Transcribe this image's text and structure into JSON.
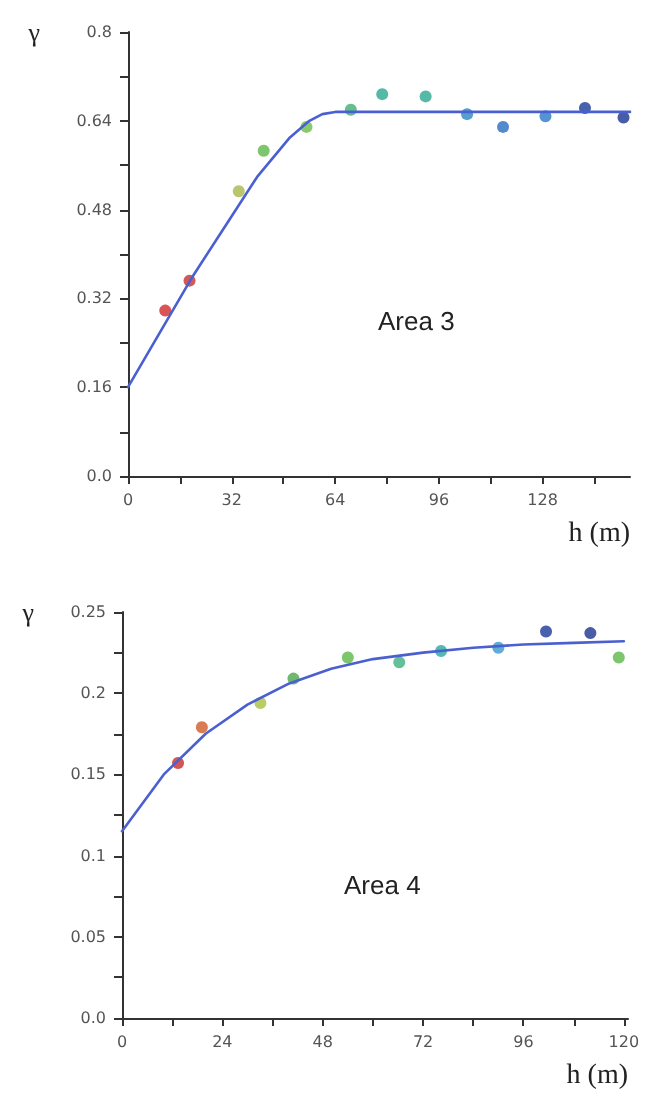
{
  "chart_data": [
    {
      "type": "scatter",
      "ylabel": "γ",
      "xlabel": "h (m)",
      "annotations": [
        "Area 3"
      ],
      "xlim": [
        0,
        155
      ],
      "ylim": [
        0,
        0.8
      ],
      "xticks": [
        0,
        {
          "value": 16,
          "label": null
        },
        32,
        {
          "value": 48,
          "label": null
        },
        64,
        {
          "value": 80,
          "label": null
        },
        96,
        {
          "value": 112,
          "label": null
        },
        128,
        {
          "value": 144,
          "label": null
        }
      ],
      "yticks": [
        {
          "value": 0,
          "label": "0.0"
        },
        {
          "value": 0.08,
          "label": null
        },
        0.16,
        {
          "value": 0.24,
          "label": null
        },
        0.32,
        {
          "value": 0.4,
          "label": null
        },
        0.48,
        {
          "value": 0.56,
          "label": null
        },
        0.64,
        {
          "value": 0.72,
          "label": null
        },
        0.8
      ],
      "grid": false,
      "marker": "circle",
      "series": [
        {
          "x": [
            11.5,
            19,
            34.2,
            41.9,
            55.1,
            68.8,
            78.5,
            91.9,
            104.7,
            115.8,
            128.9,
            141.1,
            153
          ],
          "values": [
            0.298,
            0.352,
            0.513,
            0.586,
            0.629,
            0.66,
            0.688,
            0.684,
            0.652,
            0.629,
            0.648,
            0.663,
            0.646
          ],
          "colors": [
            "#d02a2a",
            "#c83030",
            "#a8b848",
            "#5cb84a",
            "#6cbc4a",
            "#3cb070",
            "#2ca890",
            "#2aa890",
            "#2a88c0",
            "#2a6cc0",
            "#2a78c8",
            "#1a3a98",
            "#1a3490"
          ]
        },
        {
          "type": "line",
          "marker": "none",
          "line_style": "solid",
          "color": "#4a60d0",
          "x": [
            0,
            10,
            20,
            30,
            40,
            50,
            56,
            60,
            64,
            155
          ],
          "values": [
            0.16,
            0.26,
            0.36,
            0.45,
            0.54,
            0.61,
            0.64,
            0.652,
            0.656,
            0.656
          ]
        }
      ]
    },
    {
      "type": "scatter",
      "ylabel": "γ",
      "xlabel": "h (m)",
      "annotations": [
        "Area 4"
      ],
      "xlim": [
        0,
        121
      ],
      "ylim": [
        0,
        0.25
      ],
      "xticks": [
        0,
        {
          "value": 12,
          "label": null
        },
        24,
        {
          "value": 36,
          "label": null
        },
        48,
        {
          "value": 60,
          "label": null
        },
        72,
        {
          "value": 84,
          "label": null
        },
        96,
        {
          "value": 108,
          "label": null
        },
        120
      ],
      "yticks": [
        {
          "value": 0,
          "label": "0.0"
        },
        {
          "value": 0.025,
          "label": null
        },
        0.05,
        {
          "value": 0.075,
          "label": null
        },
        0.1,
        {
          "value": 0.125,
          "label": null
        },
        0.15,
        {
          "value": 0.175,
          "label": null
        },
        0.2,
        {
          "value": 0.225,
          "label": null
        },
        0.25
      ],
      "grid": false,
      "marker": "circle",
      "series": [
        {
          "x": [
            13.4,
            19.1,
            33.1,
            41,
            54,
            66.3,
            76.3,
            90,
            101.4,
            112,
            118.8
          ],
          "values": [
            0.157,
            0.179,
            0.194,
            0.209,
            0.222,
            0.219,
            0.226,
            0.228,
            0.238,
            0.237,
            0.222
          ],
          "colors": [
            "#c82a2a",
            "#d05a2a",
            "#a8c040",
            "#4aa848",
            "#5cb84a",
            "#3cb080",
            "#2aa8a0",
            "#3a98d0",
            "#1a3a98",
            "#1a3490",
            "#5cb84a"
          ]
        },
        {
          "type": "line",
          "marker": "none",
          "line_style": "solid",
          "color": "#4a60d0",
          "x": [
            0,
            10,
            20,
            30,
            40,
            50,
            60,
            72,
            84,
            96,
            108,
            120
          ],
          "values": [
            0.115,
            0.15,
            0.175,
            0.193,
            0.206,
            0.215,
            0.221,
            0.225,
            0.228,
            0.23,
            0.231,
            0.232
          ]
        }
      ]
    }
  ]
}
